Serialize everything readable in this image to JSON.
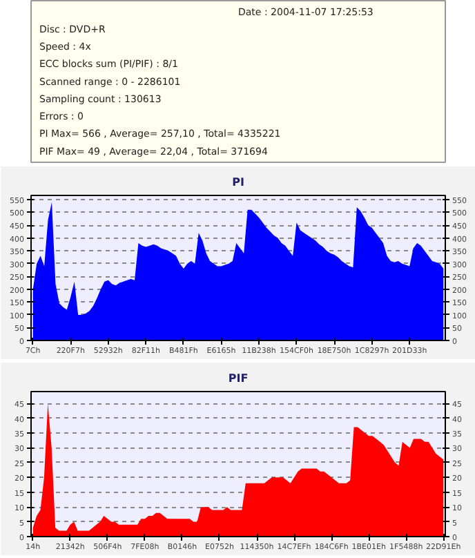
{
  "chart_data": [
    {
      "type": "other",
      "annotations": [
        "Date : 2004-11-07 17:25:53",
        "Disc : DVD+R",
        "Speed : 4x",
        "ECC blocks sum (PI/PIF) : 8/1",
        "Scanned range : 0 - 2286101",
        "Sampling count : 130613",
        "Errors : 0",
        "PI Max= 566 , Average= 257,10 , Total= 4335221",
        "PIF Max= 49 , Average= 22,04 , Total= 371694"
      ]
    },
    {
      "type": "area",
      "title": "PI",
      "categories": [
        "7Ch",
        null,
        null,
        null,
        null,
        null,
        null,
        null,
        null,
        null,
        "220F7h",
        null,
        null,
        null,
        null,
        null,
        null,
        null,
        null,
        null,
        "52932h",
        null,
        null,
        null,
        null,
        null,
        null,
        null,
        null,
        null,
        "82F11h",
        null,
        null,
        null,
        null,
        null,
        null,
        null,
        null,
        null,
        "B481Fh",
        null,
        null,
        null,
        null,
        null,
        null,
        null,
        null,
        null,
        "E6165h",
        null,
        null,
        null,
        null,
        null,
        null,
        null,
        null,
        null,
        "11B238h",
        null,
        null,
        null,
        null,
        null,
        null,
        null,
        null,
        null,
        "154CF0h",
        null,
        null,
        null,
        null,
        null,
        null,
        null,
        null,
        null,
        "18E750h",
        null,
        null,
        null,
        null,
        null,
        null,
        null,
        null,
        null,
        "1C8297h",
        null,
        null,
        null,
        null,
        null,
        null,
        null,
        null,
        null,
        "201D33h",
        null,
        null,
        null,
        null,
        null,
        null,
        null,
        null,
        null
      ],
      "series": [
        {
          "color": "#0000ff",
          "values": [
            200,
            300,
            330,
            290,
            470,
            540,
            220,
            145,
            130,
            120,
            170,
            230,
            100,
            100,
            105,
            115,
            135,
            165,
            200,
            230,
            235,
            220,
            215,
            225,
            230,
            235,
            240,
            235,
            380,
            370,
            365,
            370,
            375,
            370,
            360,
            355,
            350,
            340,
            330,
            300,
            280,
            300,
            310,
            300,
            420,
            390,
            340,
            310,
            300,
            290,
            290,
            295,
            300,
            310,
            380,
            360,
            340,
            510,
            510,
            495,
            480,
            460,
            440,
            425,
            410,
            400,
            380,
            370,
            350,
            330,
            460,
            430,
            420,
            410,
            400,
            390,
            375,
            365,
            350,
            340,
            335,
            325,
            310,
            300,
            290,
            285,
            520,
            505,
            480,
            450,
            440,
            420,
            400,
            380,
            330,
            310,
            305,
            310,
            300,
            295,
            290,
            360,
            380,
            370,
            350,
            330,
            310,
            305,
            300,
            280
          ]
        }
      ],
      "ylim": [
        0,
        566
      ],
      "yticks": [
        0,
        50,
        100,
        150,
        200,
        250,
        300,
        350,
        400,
        450,
        500,
        550
      ],
      "y2lim": [
        0,
        566
      ],
      "y2ticks": [
        0,
        50,
        100,
        150,
        200,
        250,
        300,
        350,
        400,
        450,
        500,
        550
      ],
      "grid": "y"
    },
    {
      "type": "area",
      "title": "PIF",
      "categories": [
        "14h",
        null,
        null,
        null,
        null,
        null,
        null,
        null,
        null,
        null,
        "21342h",
        null,
        null,
        null,
        null,
        null,
        null,
        null,
        null,
        null,
        "506F4h",
        null,
        null,
        null,
        null,
        null,
        null,
        null,
        null,
        null,
        "7FE08h",
        null,
        null,
        null,
        null,
        null,
        null,
        null,
        null,
        null,
        "B0146h",
        null,
        null,
        null,
        null,
        null,
        null,
        null,
        null,
        null,
        "E0752h",
        null,
        null,
        null,
        null,
        null,
        null,
        null,
        null,
        null,
        "114350h",
        null,
        null,
        null,
        null,
        null,
        null,
        null,
        null,
        null,
        "14C7EFh",
        null,
        null,
        null,
        null,
        null,
        null,
        null,
        null,
        null,
        "184C6Fh",
        null,
        null,
        null,
        null,
        null,
        null,
        null,
        null,
        null,
        "1BE01Eh",
        null,
        null,
        null,
        null,
        null,
        null,
        null,
        null,
        null,
        "1F5488h",
        null,
        null,
        null,
        null,
        null,
        null,
        null,
        null,
        null,
        "22D91Eh"
      ],
      "series": [
        {
          "color": "#ff0000",
          "values": [
            3,
            7,
            9,
            20,
            45,
            30,
            3,
            2,
            2,
            2,
            4,
            5,
            2,
            2,
            2,
            2,
            3,
            4,
            5,
            7,
            6,
            5,
            5,
            4,
            4,
            4,
            4,
            4,
            4,
            6,
            6,
            7,
            7,
            8,
            8,
            7,
            6,
            6,
            6,
            6,
            6,
            6,
            6,
            5,
            5,
            10,
            10,
            10,
            9,
            9,
            9,
            9,
            10,
            9,
            9,
            9,
            9,
            18,
            18,
            18,
            18,
            18,
            18,
            19,
            20,
            20,
            20,
            20,
            19,
            18,
            20,
            22,
            23,
            23,
            23,
            23,
            23,
            22,
            22,
            21,
            20,
            19,
            18,
            18,
            18,
            19,
            37,
            37,
            36,
            35,
            34,
            34,
            33,
            32,
            31,
            29,
            27,
            25,
            24,
            32,
            31,
            30,
            33,
            33,
            33,
            32,
            32,
            30,
            28,
            27,
            26
          ]
        }
      ],
      "ylim": [
        0,
        49
      ],
      "yticks": [
        0,
        5,
        10,
        15,
        20,
        25,
        30,
        35,
        40,
        45
      ],
      "y2lim": [
        0,
        49
      ],
      "y2ticks": [
        0,
        5,
        10,
        15,
        20,
        25,
        30,
        35,
        40,
        45
      ],
      "grid": "y"
    }
  ]
}
